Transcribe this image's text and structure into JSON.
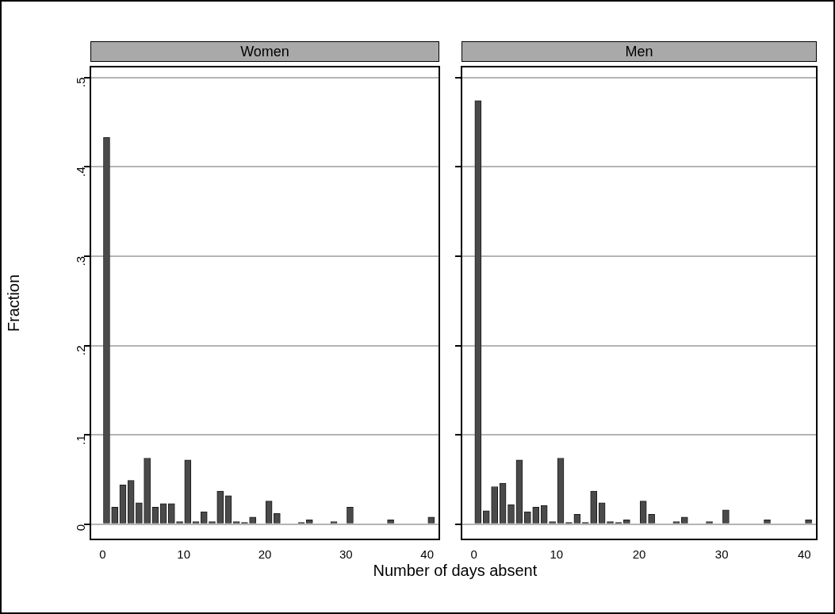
{
  "chart_data": [
    {
      "type": "histogram",
      "title": "Women",
      "xlabel": "Number of days absent",
      "ylabel": "Fraction",
      "color": "#4a4a4a",
      "grid": "y",
      "bins": [
        0,
        1,
        2,
        3,
        4,
        5,
        6,
        7,
        8,
        9,
        10,
        11,
        12,
        13,
        14,
        15,
        16,
        17,
        18,
        19,
        20,
        21,
        22,
        24,
        25,
        26,
        28,
        29,
        30,
        31,
        35,
        36,
        40,
        41
      ],
      "values": [
        0.433,
        0.019,
        0.044,
        0.049,
        0.024,
        0.074,
        0.019,
        0.023,
        0.023,
        0.003,
        0.072,
        0.003,
        0.014,
        0.003,
        0.037,
        0.032,
        0.003,
        0.002,
        0.008,
        0,
        0.026,
        0.012,
        0,
        0.002,
        0.005,
        0,
        0.003,
        0,
        0.019,
        0,
        0.005,
        0,
        0.008
      ],
      "xlim": [
        -1.5,
        41.5
      ],
      "ylim": [
        -0.017,
        0.512
      ],
      "xticks": [
        0,
        10,
        20,
        30,
        40
      ],
      "yticks": [
        0,
        {
          "value": 0.1,
          "label": ".1"
        },
        {
          "value": 0.2,
          "label": ".2"
        },
        {
          "value": 0.3,
          "label": ".3"
        },
        {
          "value": 0.4,
          "label": ".4"
        },
        {
          "value": 0.5,
          "label": ".5"
        }
      ]
    },
    {
      "type": "histogram",
      "title": "Men",
      "color": "#4a4a4a",
      "grid": "y",
      "tick_labels": "x",
      "bins": [
        0,
        1,
        2,
        3,
        4,
        5,
        6,
        7,
        8,
        9,
        10,
        11,
        12,
        13,
        14,
        15,
        16,
        17,
        18,
        19,
        20,
        21,
        22,
        24,
        25,
        26,
        28,
        29,
        30,
        31,
        35,
        36,
        40,
        41
      ],
      "values": [
        0.474,
        0.015,
        0.042,
        0.046,
        0.022,
        0.072,
        0.014,
        0.019,
        0.021,
        0.003,
        0.074,
        0.002,
        0.011,
        0.002,
        0.037,
        0.024,
        0.003,
        0.002,
        0.005,
        0,
        0.026,
        0.011,
        0,
        0.003,
        0.008,
        0,
        0.003,
        0,
        0.016,
        0,
        0.005,
        0,
        0.005
      ],
      "xlim": [
        -1.5,
        41.5
      ],
      "ylim": [
        -0.017,
        0.512
      ],
      "xticks": [
        0,
        10,
        20,
        30,
        40
      ],
      "yticks": [
        {
          "value": 0,
          "label": null
        },
        {
          "value": 0.1,
          "label": null
        },
        {
          "value": 0.2,
          "label": null
        },
        {
          "value": 0.3,
          "label": null
        },
        {
          "value": 0.4,
          "label": null
        },
        {
          "value": 0.5,
          "label": null
        }
      ]
    }
  ]
}
